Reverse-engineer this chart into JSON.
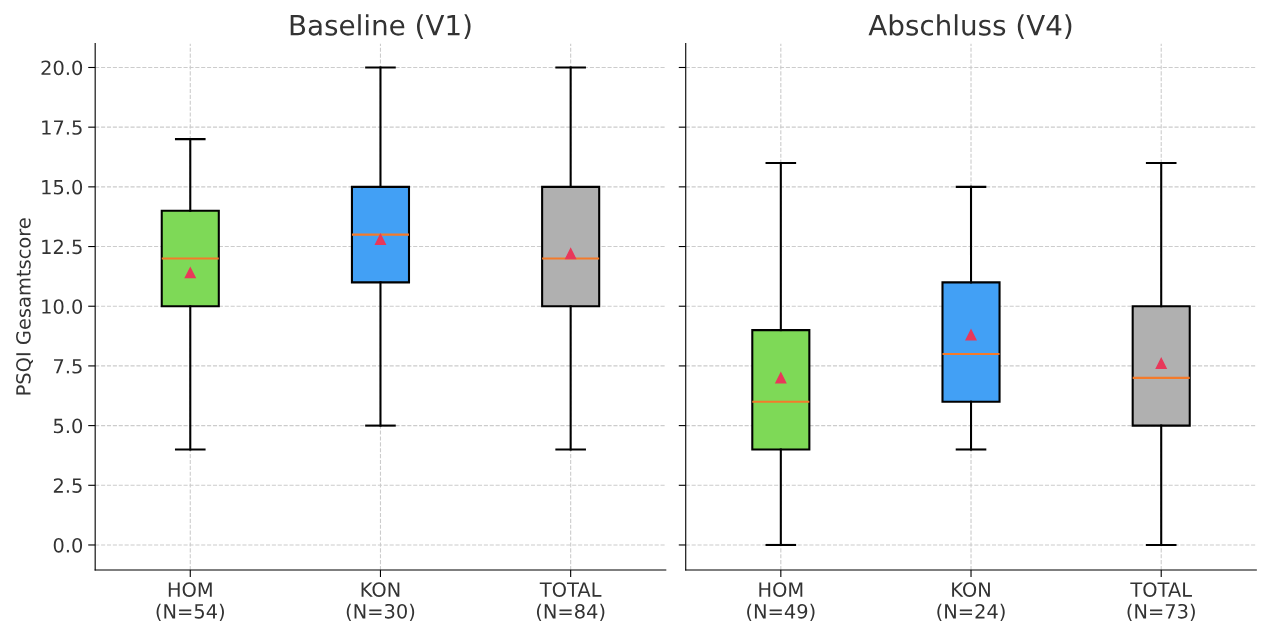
{
  "chart_data": [
    {
      "type": "box",
      "title": "Baseline (V1)",
      "ylabel": "PSQI Gesamtscore",
      "categories": [
        "HOM\n(N=54)",
        "KON\n(N=30)",
        "TOTAL\n(N=84)"
      ],
      "colors": [
        "#7ed957",
        "#42a0f5",
        "#b0b0b0"
      ],
      "boxes": [
        {
          "low": 4,
          "q1": 10,
          "median": 12,
          "q3": 14,
          "high": 17,
          "mean": 11.4
        },
        {
          "low": 5,
          "q1": 11,
          "median": 13,
          "q3": 15,
          "high": 20,
          "mean": 12.8
        },
        {
          "low": 4,
          "q1": 10,
          "median": 12,
          "q3": 15,
          "high": 20,
          "mean": 12.2
        }
      ],
      "ylim": [
        -1.05,
        21.0
      ],
      "yticks": [
        {
          "value": 0,
          "label": "0.0"
        },
        {
          "value": 2.5,
          "label": "2.5"
        },
        {
          "value": 5,
          "label": "5.0"
        },
        {
          "value": 7.5,
          "label": "7.5"
        },
        {
          "value": 10,
          "label": "10.0"
        },
        {
          "value": 12.5,
          "label": "12.5"
        },
        {
          "value": 15,
          "label": "15.0"
        },
        {
          "value": 17.5,
          "label": "17.5"
        },
        {
          "value": 20,
          "label": "20.0"
        }
      ],
      "grid": true
    },
    {
      "type": "box",
      "title": "Abschluss (V4)",
      "categories": [
        "HOM\n(N=49)",
        "KON\n(N=24)",
        "TOTAL\n(N=73)"
      ],
      "colors": [
        "#7ed957",
        "#42a0f5",
        "#b0b0b0"
      ],
      "boxes": [
        {
          "low": 0,
          "q1": 4,
          "median": 6,
          "q3": 9,
          "high": 16,
          "mean": 7.0
        },
        {
          "low": 4,
          "q1": 6,
          "median": 8,
          "q3": 11,
          "high": 15,
          "mean": 8.8
        },
        {
          "low": 0,
          "q1": 5,
          "median": 7,
          "q3": 10,
          "high": 16,
          "mean": 7.6
        }
      ],
      "ylim": [
        -1.05,
        21.0
      ],
      "yticks": [
        {
          "value": 0,
          "label": null
        },
        {
          "value": 2.5,
          "label": null
        },
        {
          "value": 5,
          "label": null
        },
        {
          "value": 7.5,
          "label": null
        },
        {
          "value": 10,
          "label": null
        },
        {
          "value": 12.5,
          "label": null
        },
        {
          "value": 15,
          "label": null
        },
        {
          "value": 17.5,
          "label": null
        },
        {
          "value": 20,
          "label": null
        }
      ],
      "grid": true,
      "tick_labels": "x"
    }
  ]
}
